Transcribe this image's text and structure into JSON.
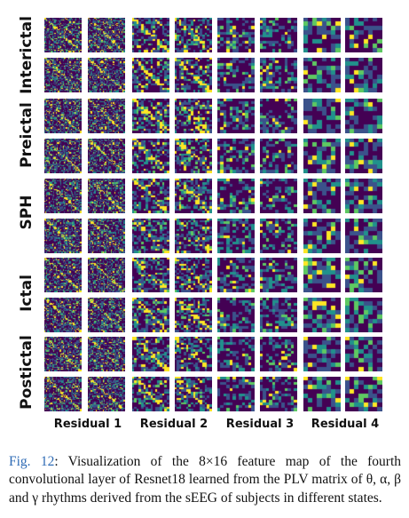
{
  "figure": {
    "row_groups": [
      "Interictal",
      "Preictal",
      "SPH",
      "Ictal",
      "Postictal"
    ],
    "columns": [
      "Residual 1",
      "Residual 2",
      "Residual 3",
      "Residual 4"
    ],
    "colormap": [
      "#440154",
      "#3b528b",
      "#21918c",
      "#5ec962",
      "#fde725"
    ]
  },
  "caption": {
    "label": "Fig. 12",
    "text": ": Visualization of the 8×16 feature map of the fourth convolutional layer of Resnet18 learned from the PLV matrix of θ, α, β and γ rhythms derived from the sEEG of subjects in different states."
  }
}
